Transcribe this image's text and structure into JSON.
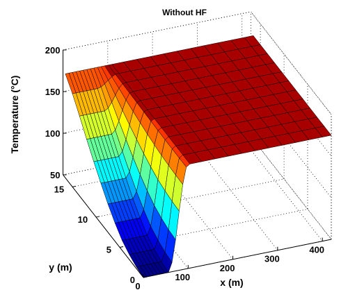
{
  "chart_data": {
    "type": "surface",
    "title": "Without HF",
    "xlabel": "x (m)",
    "ylabel": "y (m)",
    "zlabel": "Temperature (°C)",
    "xlim": [
      0,
      420
    ],
    "ylim": [
      0,
      17
    ],
    "zlim": [
      50,
      200
    ],
    "x_ticks": [
      0,
      100,
      200,
      300,
      400
    ],
    "y_ticks": [
      0,
      5,
      10,
      15
    ],
    "z_ticks": [
      50,
      100,
      150,
      200
    ],
    "x_tick_labels": [
      "0",
      "100",
      "200",
      "300",
      "400"
    ],
    "y_tick_labels": [
      "0",
      "5",
      "10",
      "15"
    ],
    "z_tick_labels": [
      "50",
      "100",
      "150",
      "200"
    ],
    "grid": true,
    "colormap": "jet",
    "plateau_temperature": 175,
    "x_grid": [
      0,
      8,
      16,
      24,
      32,
      40,
      48,
      56,
      64,
      72,
      80,
      88,
      96,
      104,
      130,
      160,
      190,
      220,
      250,
      280,
      310,
      340,
      370,
      400,
      420
    ],
    "y_grid": [
      0,
      1.5,
      3,
      4.5,
      6,
      7.5,
      9,
      10.5,
      12,
      13.5,
      15,
      16.5
    ],
    "temperature_profile_at_low_x": [
      {
        "y": 0,
        "T": 50
      },
      {
        "y": 1.5,
        "T": 52
      },
      {
        "y": 3,
        "T": 56
      },
      {
        "y": 4.5,
        "T": 62
      },
      {
        "y": 6,
        "T": 72
      },
      {
        "y": 7.5,
        "T": 84
      },
      {
        "y": 9,
        "T": 98
      },
      {
        "y": 10.5,
        "T": 113
      },
      {
        "y": 12,
        "T": 129
      },
      {
        "y": 13.5,
        "T": 146
      },
      {
        "y": 15,
        "T": 162
      },
      {
        "y": 16.5,
        "T": 175
      }
    ]
  }
}
